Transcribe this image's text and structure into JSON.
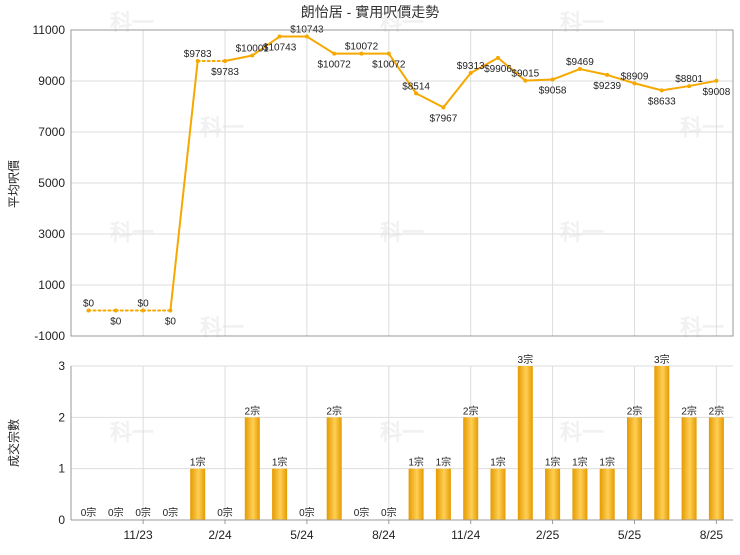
{
  "colors": {
    "line": "#f5a800",
    "bar_light": "#ffcf55",
    "bar_dark": "#e59a00",
    "grid": "#dddddd",
    "axis": "#999999"
  },
  "watermark": "科一",
  "chart_data": [
    {
      "type": "line",
      "title": "朗怡居 - 實用呎價走勢",
      "ylabel": "平均呎價",
      "ylim": [
        -1000,
        11000
      ],
      "yticks": [
        -1000,
        1000,
        3000,
        5000,
        7000,
        9000,
        11000
      ],
      "grid": true,
      "label_prefix": "$",
      "values": [
        0,
        0,
        0,
        0,
        9783,
        9783,
        10001,
        10743,
        10743,
        10072,
        10072,
        10072,
        8514,
        7967,
        9313,
        9906,
        9015,
        9058,
        9469,
        9239,
        8909,
        8633,
        8801,
        9008
      ],
      "dashed_segments": [
        [
          0,
          3
        ],
        [
          4,
          5
        ]
      ]
    },
    {
      "type": "bar",
      "ylabel": "成交宗數",
      "ylim": [
        0,
        3
      ],
      "yticks": [
        0,
        1,
        2,
        3
      ],
      "grid": true,
      "label_suffix": "宗",
      "values": [
        0,
        0,
        0,
        0,
        1,
        0,
        2,
        1,
        0,
        2,
        0,
        0,
        1,
        1,
        2,
        1,
        3,
        1,
        1,
        1,
        2,
        3,
        2,
        2
      ],
      "x_tick_labels": [
        {
          "label": "11/23",
          "index": 2
        },
        {
          "label": "2/24",
          "index": 5
        },
        {
          "label": "5/24",
          "index": 8
        },
        {
          "label": "8/24",
          "index": 11
        },
        {
          "label": "11/24",
          "index": 14
        },
        {
          "label": "2/25",
          "index": 17
        },
        {
          "label": "5/25",
          "index": 20
        },
        {
          "label": "8/25",
          "index": 23
        }
      ]
    }
  ]
}
